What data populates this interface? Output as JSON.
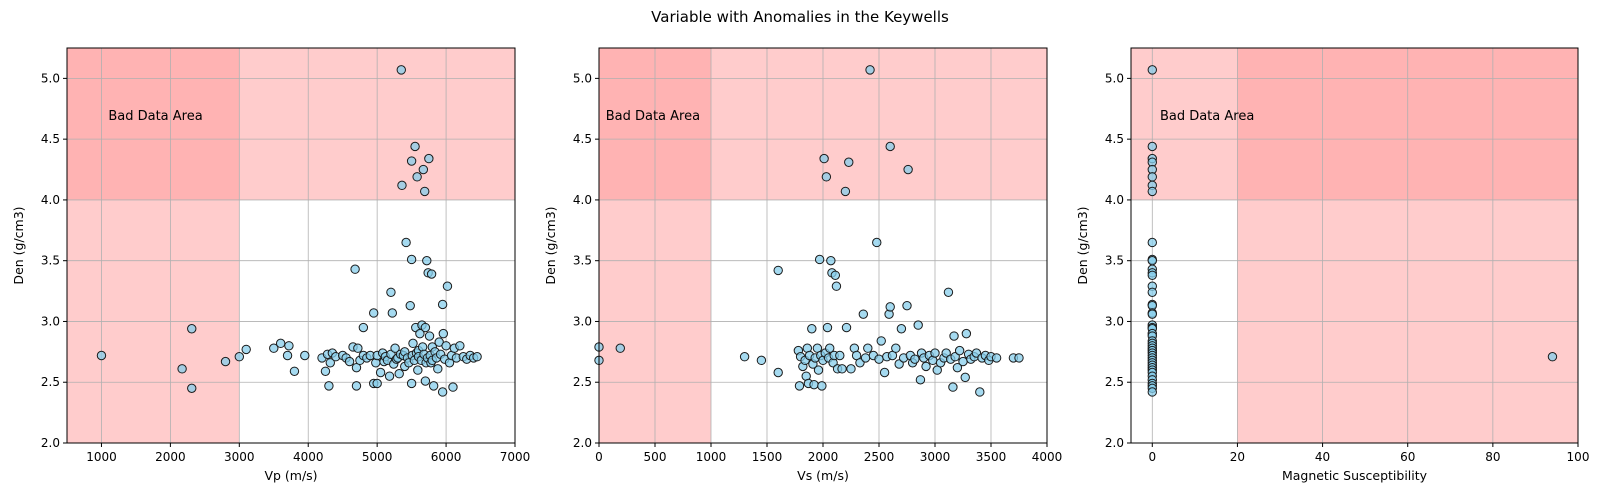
{
  "figure": {
    "title": "Variable with Anomalies in the Keywells"
  },
  "colors": {
    "point_fill": "#87CEEB",
    "point_edge": "#1a1a1a",
    "bad_zone": "#ff9999",
    "grid": "#b0b0b0"
  },
  "chart_data": [
    {
      "type": "scatter",
      "xlabel": "Vp (m/s)",
      "ylabel": "Den (g/cm3)",
      "xlim": [
        500,
        7000
      ],
      "ylim": [
        2.0,
        5.25
      ],
      "xticks": [
        1000,
        2000,
        3000,
        4000,
        5000,
        6000,
        7000
      ],
      "yticks": [
        2.0,
        2.5,
        3.0,
        3.5,
        4.0,
        4.5,
        5.0
      ],
      "grid": true,
      "bad_zones": [
        {
          "x": [
            500,
            3000
          ],
          "y": [
            2.0,
            5.25
          ]
        },
        {
          "x": [
            500,
            7000
          ],
          "y": [
            4.0,
            5.25
          ]
        }
      ],
      "annotation": {
        "text": "Bad Data Area",
        "x": 1100,
        "y": 4.7
      },
      "points": [
        [
          1000,
          2.72
        ],
        [
          2170,
          2.61
        ],
        [
          2310,
          2.94
        ],
        [
          2310,
          2.45
        ],
        [
          2800,
          2.67
        ],
        [
          3000,
          2.71
        ],
        [
          3100,
          2.77
        ],
        [
          3500,
          2.78
        ],
        [
          3600,
          2.82
        ],
        [
          3700,
          2.72
        ],
        [
          3720,
          2.8
        ],
        [
          3800,
          2.59
        ],
        [
          3950,
          2.72
        ],
        [
          4200,
          2.7
        ],
        [
          4250,
          2.59
        ],
        [
          4280,
          2.73
        ],
        [
          4300,
          2.47
        ],
        [
          4320,
          2.66
        ],
        [
          4350,
          2.74
        ],
        [
          4400,
          2.71
        ],
        [
          4500,
          2.72
        ],
        [
          4550,
          2.7
        ],
        [
          4600,
          2.67
        ],
        [
          4650,
          2.79
        ],
        [
          4680,
          3.43
        ],
        [
          4700,
          2.47
        ],
        [
          4700,
          2.62
        ],
        [
          4720,
          2.78
        ],
        [
          4750,
          2.68
        ],
        [
          4800,
          2.95
        ],
        [
          4800,
          2.72
        ],
        [
          4850,
          2.7
        ],
        [
          4900,
          2.72
        ],
        [
          4950,
          3.07
        ],
        [
          4950,
          2.49
        ],
        [
          4980,
          2.66
        ],
        [
          5000,
          2.72
        ],
        [
          5000,
          2.49
        ],
        [
          5050,
          2.58
        ],
        [
          5080,
          2.74
        ],
        [
          5100,
          2.67
        ],
        [
          5120,
          2.71
        ],
        [
          5150,
          2.68
        ],
        [
          5180,
          2.55
        ],
        [
          5200,
          3.24
        ],
        [
          5200,
          2.73
        ],
        [
          5220,
          3.07
        ],
        [
          5240,
          2.65
        ],
        [
          5260,
          2.78
        ],
        [
          5280,
          2.69
        ],
        [
          5300,
          2.7
        ],
        [
          5320,
          2.57
        ],
        [
          5340,
          2.73
        ],
        [
          5350,
          5.07
        ],
        [
          5360,
          4.12
        ],
        [
          5380,
          2.72
        ],
        [
          5400,
          2.63
        ],
        [
          5400,
          2.75
        ],
        [
          5420,
          3.65
        ],
        [
          5440,
          2.7
        ],
        [
          5460,
          2.66
        ],
        [
          5480,
          3.13
        ],
        [
          5500,
          3.51
        ],
        [
          5500,
          2.49
        ],
        [
          5500,
          4.32
        ],
        [
          5510,
          2.72
        ],
        [
          5520,
          2.82
        ],
        [
          5540,
          2.68
        ],
        [
          5550,
          4.44
        ],
        [
          5560,
          2.95
        ],
        [
          5570,
          2.74
        ],
        [
          5580,
          4.19
        ],
        [
          5590,
          2.6
        ],
        [
          5600,
          2.76
        ],
        [
          5600,
          2.71
        ],
        [
          5620,
          2.9
        ],
        [
          5640,
          2.68
        ],
        [
          5650,
          2.97
        ],
        [
          5660,
          2.79
        ],
        [
          5670,
          4.25
        ],
        [
          5680,
          2.73
        ],
        [
          5690,
          4.07
        ],
        [
          5700,
          2.95
        ],
        [
          5700,
          2.51
        ],
        [
          5710,
          2.66
        ],
        [
          5720,
          3.5
        ],
        [
          5730,
          2.7
        ],
        [
          5740,
          3.4
        ],
        [
          5750,
          4.34
        ],
        [
          5760,
          2.88
        ],
        [
          5770,
          2.72
        ],
        [
          5780,
          2.66
        ],
        [
          5790,
          3.39
        ],
        [
          5800,
          2.79
        ],
        [
          5800,
          2.68
        ],
        [
          5820,
          2.47
        ],
        [
          5840,
          2.75
        ],
        [
          5860,
          2.7
        ],
        [
          5880,
          2.61
        ],
        [
          5900,
          2.83
        ],
        [
          5920,
          2.73
        ],
        [
          5950,
          3.14
        ],
        [
          5950,
          2.42
        ],
        [
          5960,
          2.9
        ],
        [
          5980,
          2.69
        ],
        [
          6000,
          2.8
        ],
        [
          6020,
          3.29
        ],
        [
          6050,
          2.66
        ],
        [
          6080,
          2.72
        ],
        [
          6100,
          2.46
        ],
        [
          6120,
          2.78
        ],
        [
          6150,
          2.7
        ],
        [
          6200,
          2.8
        ],
        [
          6250,
          2.71
        ],
        [
          6300,
          2.69
        ],
        [
          6350,
          2.72
        ],
        [
          6400,
          2.7
        ],
        [
          6450,
          2.71
        ]
      ]
    },
    {
      "type": "scatter",
      "xlabel": "Vs (m/s)",
      "ylabel": "Den (g/cm3)",
      "xlim": [
        0,
        4000
      ],
      "ylim": [
        2.0,
        5.25
      ],
      "xticks": [
        0,
        500,
        1000,
        1500,
        2000,
        2500,
        3000,
        3500,
        4000
      ],
      "yticks": [
        2.0,
        2.5,
        3.0,
        3.5,
        4.0,
        4.5,
        5.0
      ],
      "grid": true,
      "bad_zones": [
        {
          "x": [
            0,
            1000
          ],
          "y": [
            2.0,
            5.25
          ]
        },
        {
          "x": [
            0,
            4000
          ],
          "y": [
            4.0,
            5.25
          ]
        }
      ],
      "annotation": {
        "text": "Bad Data Area",
        "x": 60,
        "y": 4.7
      },
      "points": [
        [
          0,
          2.79
        ],
        [
          0,
          2.68
        ],
        [
          190,
          2.78
        ],
        [
          1300,
          2.71
        ],
        [
          1450,
          2.68
        ],
        [
          1600,
          3.42
        ],
        [
          1600,
          2.58
        ],
        [
          1780,
          2.76
        ],
        [
          1790,
          2.47
        ],
        [
          1800,
          2.71
        ],
        [
          1820,
          2.63
        ],
        [
          1840,
          2.68
        ],
        [
          1850,
          2.55
        ],
        [
          1860,
          2.78
        ],
        [
          1870,
          2.49
        ],
        [
          1880,
          2.72
        ],
        [
          1900,
          2.94
        ],
        [
          1910,
          2.65
        ],
        [
          1920,
          2.48
        ],
        [
          1930,
          2.7
        ],
        [
          1950,
          2.78
        ],
        [
          1960,
          2.6
        ],
        [
          1970,
          3.51
        ],
        [
          1980,
          2.72
        ],
        [
          1990,
          2.47
        ],
        [
          2000,
          2.68
        ],
        [
          2010,
          4.34
        ],
        [
          2020,
          2.74
        ],
        [
          2030,
          4.19
        ],
        [
          2040,
          2.95
        ],
        [
          2050,
          2.7
        ],
        [
          2060,
          2.78
        ],
        [
          2070,
          3.5
        ],
        [
          2080,
          3.4
        ],
        [
          2090,
          2.66
        ],
        [
          2100,
          2.72
        ],
        [
          2110,
          3.38
        ],
        [
          2120,
          3.29
        ],
        [
          2130,
          2.61
        ],
        [
          2150,
          2.72
        ],
        [
          2170,
          2.61
        ],
        [
          2200,
          4.07
        ],
        [
          2210,
          2.95
        ],
        [
          2230,
          4.31
        ],
        [
          2250,
          2.61
        ],
        [
          2280,
          2.78
        ],
        [
          2300,
          2.72
        ],
        [
          2330,
          2.66
        ],
        [
          2360,
          3.06
        ],
        [
          2380,
          2.7
        ],
        [
          2400,
          2.78
        ],
        [
          2420,
          5.07
        ],
        [
          2450,
          2.72
        ],
        [
          2480,
          3.65
        ],
        [
          2500,
          2.69
        ],
        [
          2520,
          2.84
        ],
        [
          2550,
          2.58
        ],
        [
          2570,
          2.71
        ],
        [
          2590,
          3.06
        ],
        [
          2600,
          3.12
        ],
        [
          2600,
          4.44
        ],
        [
          2620,
          2.72
        ],
        [
          2650,
          2.78
        ],
        [
          2680,
          2.65
        ],
        [
          2700,
          2.94
        ],
        [
          2720,
          2.7
        ],
        [
          2750,
          3.13
        ],
        [
          2760,
          4.25
        ],
        [
          2780,
          2.72
        ],
        [
          2800,
          2.66
        ],
        [
          2820,
          2.69
        ],
        [
          2850,
          2.97
        ],
        [
          2870,
          2.52
        ],
        [
          2880,
          2.74
        ],
        [
          2900,
          2.7
        ],
        [
          2920,
          2.63
        ],
        [
          2950,
          2.72
        ],
        [
          2980,
          2.68
        ],
        [
          3000,
          2.74
        ],
        [
          3020,
          2.6
        ],
        [
          3050,
          2.66
        ],
        [
          3080,
          2.7
        ],
        [
          3100,
          2.74
        ],
        [
          3120,
          3.24
        ],
        [
          3140,
          2.69
        ],
        [
          3160,
          2.46
        ],
        [
          3170,
          2.88
        ],
        [
          3180,
          2.71
        ],
        [
          3200,
          2.62
        ],
        [
          3220,
          2.76
        ],
        [
          3250,
          2.67
        ],
        [
          3270,
          2.54
        ],
        [
          3280,
          2.9
        ],
        [
          3300,
          2.73
        ],
        [
          3320,
          2.69
        ],
        [
          3350,
          2.71
        ],
        [
          3370,
          2.74
        ],
        [
          3400,
          2.42
        ],
        [
          3420,
          2.7
        ],
        [
          3450,
          2.72
        ],
        [
          3480,
          2.68
        ],
        [
          3500,
          2.71
        ],
        [
          3550,
          2.7
        ],
        [
          3700,
          2.7
        ],
        [
          3750,
          2.7
        ]
      ]
    },
    {
      "type": "scatter",
      "xlabel": "Magnetic Susceptibility",
      "ylabel": "Den (g/cm3)",
      "xlim": [
        -5,
        100
      ],
      "ylim": [
        2.0,
        5.25
      ],
      "xticks": [
        0,
        20,
        40,
        60,
        80,
        100
      ],
      "yticks": [
        2.0,
        2.5,
        3.0,
        3.5,
        4.0,
        4.5,
        5.0
      ],
      "grid": true,
      "bad_zones": [
        {
          "x": [
            20,
            100
          ],
          "y": [
            2.0,
            5.25
          ]
        },
        {
          "x": [
            -5,
            100
          ],
          "y": [
            4.0,
            5.25
          ]
        }
      ],
      "annotation": {
        "text": "Bad Data Area",
        "x": 1.8,
        "y": 4.7
      },
      "points": [
        [
          0,
          5.07
        ],
        [
          0,
          4.44
        ],
        [
          0,
          4.34
        ],
        [
          0,
          4.31
        ],
        [
          0,
          4.25
        ],
        [
          0,
          4.19
        ],
        [
          0,
          4.12
        ],
        [
          0,
          4.07
        ],
        [
          0,
          3.65
        ],
        [
          0,
          3.51
        ],
        [
          0,
          3.5
        ],
        [
          0,
          3.43
        ],
        [
          0,
          3.4
        ],
        [
          0,
          3.38
        ],
        [
          0,
          3.29
        ],
        [
          0,
          3.24
        ],
        [
          0,
          3.14
        ],
        [
          0,
          3.13
        ],
        [
          0,
          3.07
        ],
        [
          0,
          3.06
        ],
        [
          0,
          2.97
        ],
        [
          0,
          2.95
        ],
        [
          0,
          2.94
        ],
        [
          0,
          2.9
        ],
        [
          0,
          2.88
        ],
        [
          0,
          2.84
        ],
        [
          0,
          2.82
        ],
        [
          0,
          2.8
        ],
        [
          0,
          2.78
        ],
        [
          0,
          2.76
        ],
        [
          0,
          2.74
        ],
        [
          0,
          2.72
        ],
        [
          0,
          2.7
        ],
        [
          0,
          2.68
        ],
        [
          0,
          2.66
        ],
        [
          0,
          2.64
        ],
        [
          0,
          2.62
        ],
        [
          0,
          2.6
        ],
        [
          0,
          2.58
        ],
        [
          0,
          2.55
        ],
        [
          0,
          2.52
        ],
        [
          0,
          2.49
        ],
        [
          0,
          2.47
        ],
        [
          0,
          2.45
        ],
        [
          0,
          2.42
        ],
        [
          94,
          2.71
        ]
      ]
    }
  ]
}
